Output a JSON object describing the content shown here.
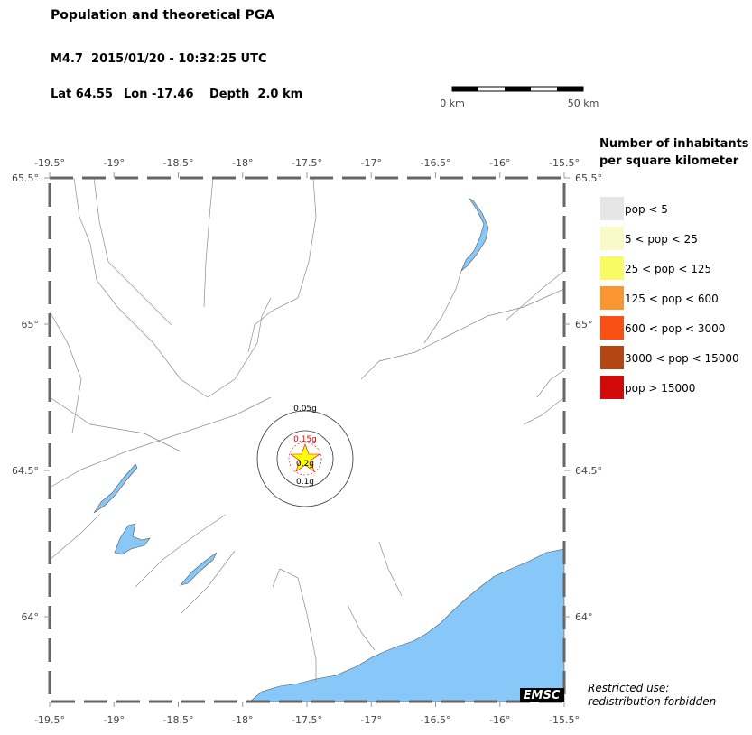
{
  "header": {
    "title": "Population and theoretical PGA",
    "event": "M4.7  2015/01/20 - 10:32:25 UTC",
    "lat": "Lat 64.55",
    "lon": "Lon -17.46",
    "depth": "Depth  2.0 km"
  },
  "scale_bar": {
    "start": "0 km",
    "end": "50 km"
  },
  "map": {
    "lon_range": [
      -19.5,
      -15.5
    ],
    "lat_range": [
      63.71,
      65.5
    ],
    "lon_ticks": [
      {
        "value": -19.5,
        "label": "-19.5°"
      },
      {
        "value": -19,
        "label": "-19°"
      },
      {
        "value": -18.5,
        "label": "-18.5°"
      },
      {
        "value": -18,
        "label": "-18°"
      },
      {
        "value": -17.5,
        "label": "-17.5°"
      },
      {
        "value": -17,
        "label": "-17°"
      },
      {
        "value": -16.5,
        "label": "-16.5°"
      },
      {
        "value": -16,
        "label": "-16°"
      },
      {
        "value": -15.5,
        "label": "-15.5°"
      }
    ],
    "lat_ticks": [
      {
        "value": 65.5,
        "label": "65.5°"
      },
      {
        "value": 65,
        "label": "65°"
      },
      {
        "value": 64.5,
        "label": "64.5°"
      },
      {
        "value": 64,
        "label": "64°"
      }
    ],
    "pga_labels": [
      "0.05g",
      "0.15g",
      "0.2g",
      "0.1g"
    ]
  },
  "legend": {
    "title_lines": [
      "Number of inhabitants",
      "per square kilometer"
    ],
    "items": [
      {
        "label": "pop < 5",
        "color": "#e6e6e6"
      },
      {
        "label": "5 < pop < 25",
        "color": "#fafac8"
      },
      {
        "label": "25 < pop < 125",
        "color": "#fafa64"
      },
      {
        "label": "125 < pop < 600",
        "color": "#fa9632"
      },
      {
        "label": "600 < pop < 3000",
        "color": "#fa5014"
      },
      {
        "label": "3000 < pop < 15000",
        "color": "#b44614"
      },
      {
        "label": "pop > 15000",
        "color": "#d20a0a"
      }
    ]
  },
  "credit": "EMSC",
  "notice": [
    "Restricted use:",
    "redistribution forbidden"
  ]
}
